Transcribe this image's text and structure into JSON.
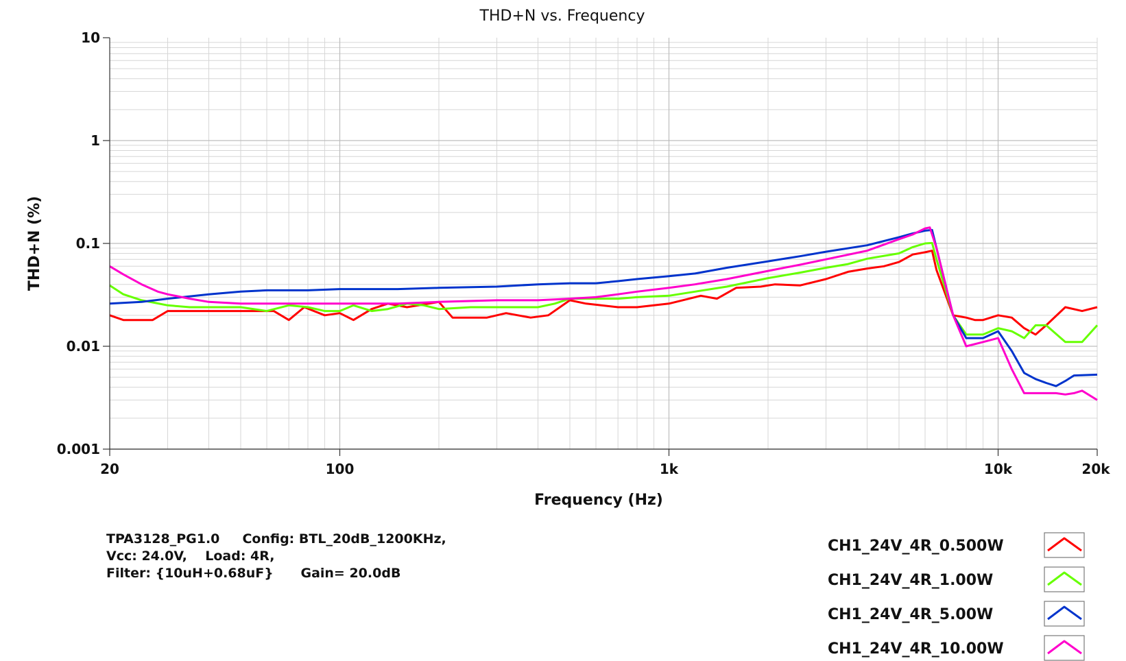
{
  "chart_data": {
    "type": "line",
    "title": "THD+N vs. Frequency",
    "xlabel": "Frequency (Hz)",
    "ylabel": "THD+N (%)",
    "x_scale": "log",
    "y_scale": "log",
    "xlim": [
      20,
      20000
    ],
    "ylim": [
      0.001,
      10
    ],
    "x_ticks": [
      {
        "value": 20,
        "label": "20"
      },
      {
        "value": 100,
        "label": "100"
      },
      {
        "value": 1000,
        "label": "1k"
      },
      {
        "value": 10000,
        "label": "10k"
      },
      {
        "value": 20000,
        "label": "20k"
      }
    ],
    "y_ticks": [
      {
        "value": 10,
        "label": "10"
      },
      {
        "value": 1,
        "label": "1"
      },
      {
        "value": 0.1,
        "label": "0.1"
      },
      {
        "value": 0.01,
        "label": "0.01"
      },
      {
        "value": 0.001,
        "label": "0.001"
      }
    ],
    "grid": true,
    "legend_position": "bottom-right",
    "info_lines": [
      "TPA3128_PG1.0     Config: BTL_20dB_1200KHz,",
      "Vcc: 24.0V,    Load: 4R,",
      "Filter: {10uH+0.68uF}      Gain= 20.0dB"
    ],
    "series": [
      {
        "name": "CH1_24V_4R_0.500W",
        "color": "#ff0000",
        "points": [
          [
            20,
            0.02
          ],
          [
            22,
            0.018
          ],
          [
            27,
            0.018
          ],
          [
            30,
            0.022
          ],
          [
            40,
            0.022
          ],
          [
            50,
            0.022
          ],
          [
            63,
            0.022
          ],
          [
            70,
            0.018
          ],
          [
            78,
            0.024
          ],
          [
            90,
            0.02
          ],
          [
            100,
            0.021
          ],
          [
            110,
            0.018
          ],
          [
            125,
            0.023
          ],
          [
            140,
            0.026
          ],
          [
            160,
            0.024
          ],
          [
            200,
            0.027
          ],
          [
            220,
            0.019
          ],
          [
            280,
            0.019
          ],
          [
            320,
            0.021
          ],
          [
            380,
            0.019
          ],
          [
            430,
            0.02
          ],
          [
            500,
            0.028
          ],
          [
            560,
            0.026
          ],
          [
            700,
            0.024
          ],
          [
            800,
            0.024
          ],
          [
            1000,
            0.026
          ],
          [
            1100,
            0.028
          ],
          [
            1250,
            0.031
          ],
          [
            1400,
            0.029
          ],
          [
            1600,
            0.037
          ],
          [
            1900,
            0.038
          ],
          [
            2100,
            0.04
          ],
          [
            2500,
            0.039
          ],
          [
            3000,
            0.045
          ],
          [
            3500,
            0.053
          ],
          [
            4000,
            0.057
          ],
          [
            4500,
            0.06
          ],
          [
            5000,
            0.066
          ],
          [
            5500,
            0.078
          ],
          [
            6000,
            0.082
          ],
          [
            6300,
            0.085
          ],
          [
            6500,
            0.055
          ],
          [
            7300,
            0.02
          ],
          [
            8000,
            0.019
          ],
          [
            8500,
            0.018
          ],
          [
            9000,
            0.018
          ],
          [
            10000,
            0.02
          ],
          [
            11000,
            0.019
          ],
          [
            12000,
            0.015
          ],
          [
            13000,
            0.013
          ],
          [
            14000,
            0.016
          ],
          [
            16000,
            0.024
          ],
          [
            18000,
            0.022
          ],
          [
            20000,
            0.024
          ]
        ]
      },
      {
        "name": "CH1_24V_4R_1.00W",
        "color": "#66ff00",
        "points": [
          [
            20,
            0.039
          ],
          [
            22,
            0.032
          ],
          [
            25,
            0.028
          ],
          [
            30,
            0.025
          ],
          [
            35,
            0.024
          ],
          [
            40,
            0.024
          ],
          [
            50,
            0.024
          ],
          [
            60,
            0.022
          ],
          [
            70,
            0.025
          ],
          [
            80,
            0.024
          ],
          [
            90,
            0.022
          ],
          [
            100,
            0.022
          ],
          [
            110,
            0.025
          ],
          [
            125,
            0.022
          ],
          [
            140,
            0.023
          ],
          [
            160,
            0.026
          ],
          [
            180,
            0.025
          ],
          [
            200,
            0.023
          ],
          [
            250,
            0.024
          ],
          [
            300,
            0.024
          ],
          [
            400,
            0.024
          ],
          [
            450,
            0.026
          ],
          [
            500,
            0.029
          ],
          [
            600,
            0.029
          ],
          [
            700,
            0.029
          ],
          [
            800,
            0.03
          ],
          [
            1000,
            0.031
          ],
          [
            1200,
            0.034
          ],
          [
            1500,
            0.038
          ],
          [
            2000,
            0.046
          ],
          [
            2500,
            0.052
          ],
          [
            3000,
            0.058
          ],
          [
            3500,
            0.063
          ],
          [
            4000,
            0.071
          ],
          [
            5000,
            0.08
          ],
          [
            5500,
            0.092
          ],
          [
            6000,
            0.1
          ],
          [
            6300,
            0.101
          ],
          [
            6500,
            0.07
          ],
          [
            7300,
            0.02
          ],
          [
            8000,
            0.013
          ],
          [
            9000,
            0.013
          ],
          [
            10000,
            0.015
          ],
          [
            11000,
            0.014
          ],
          [
            12000,
            0.012
          ],
          [
            13000,
            0.016
          ],
          [
            14000,
            0.016
          ],
          [
            16000,
            0.011
          ],
          [
            18000,
            0.011
          ],
          [
            20000,
            0.016
          ]
        ]
      },
      {
        "name": "CH1_24V_4R_5.00W",
        "color": "#0033cc",
        "points": [
          [
            20,
            0.026
          ],
          [
            25,
            0.027
          ],
          [
            30,
            0.029
          ],
          [
            40,
            0.032
          ],
          [
            50,
            0.034
          ],
          [
            60,
            0.035
          ],
          [
            80,
            0.035
          ],
          [
            100,
            0.036
          ],
          [
            150,
            0.036
          ],
          [
            200,
            0.037
          ],
          [
            300,
            0.038
          ],
          [
            400,
            0.04
          ],
          [
            500,
            0.041
          ],
          [
            600,
            0.041
          ],
          [
            700,
            0.043
          ],
          [
            800,
            0.045
          ],
          [
            1000,
            0.048
          ],
          [
            1200,
            0.051
          ],
          [
            1500,
            0.058
          ],
          [
            2000,
            0.067
          ],
          [
            2500,
            0.075
          ],
          [
            3000,
            0.083
          ],
          [
            4000,
            0.096
          ],
          [
            5000,
            0.115
          ],
          [
            5500,
            0.125
          ],
          [
            6000,
            0.133
          ],
          [
            6300,
            0.135
          ],
          [
            6500,
            0.09
          ],
          [
            7300,
            0.02
          ],
          [
            8000,
            0.012
          ],
          [
            9000,
            0.012
          ],
          [
            10000,
            0.014
          ],
          [
            11000,
            0.009
          ],
          [
            12000,
            0.0055
          ],
          [
            13000,
            0.0048
          ],
          [
            14000,
            0.0044
          ],
          [
            15000,
            0.0041
          ],
          [
            16000,
            0.0046
          ],
          [
            17000,
            0.0052
          ],
          [
            20000,
            0.0053
          ]
        ]
      },
      {
        "name": "CH1_24V_4R_10.00W",
        "color": "#ff00cc",
        "points": [
          [
            20,
            0.06
          ],
          [
            22,
            0.05
          ],
          [
            25,
            0.04
          ],
          [
            28,
            0.034
          ],
          [
            30,
            0.032
          ],
          [
            35,
            0.029
          ],
          [
            40,
            0.027
          ],
          [
            50,
            0.026
          ],
          [
            60,
            0.026
          ],
          [
            80,
            0.026
          ],
          [
            100,
            0.026
          ],
          [
            150,
            0.026
          ],
          [
            200,
            0.027
          ],
          [
            300,
            0.028
          ],
          [
            400,
            0.028
          ],
          [
            500,
            0.029
          ],
          [
            600,
            0.03
          ],
          [
            700,
            0.032
          ],
          [
            800,
            0.034
          ],
          [
            1000,
            0.037
          ],
          [
            1200,
            0.04
          ],
          [
            1500,
            0.045
          ],
          [
            2000,
            0.054
          ],
          [
            2500,
            0.062
          ],
          [
            3000,
            0.07
          ],
          [
            4000,
            0.085
          ],
          [
            5000,
            0.11
          ],
          [
            5500,
            0.122
          ],
          [
            6000,
            0.14
          ],
          [
            6200,
            0.143
          ],
          [
            6500,
            0.09
          ],
          [
            7300,
            0.02
          ],
          [
            8000,
            0.01
          ],
          [
            9000,
            0.011
          ],
          [
            10000,
            0.012
          ],
          [
            11000,
            0.006
          ],
          [
            12000,
            0.0035
          ],
          [
            13000,
            0.0035
          ],
          [
            15000,
            0.0035
          ],
          [
            16000,
            0.0034
          ],
          [
            17000,
            0.0035
          ],
          [
            18000,
            0.0037
          ],
          [
            20000,
            0.003
          ]
        ]
      }
    ]
  }
}
